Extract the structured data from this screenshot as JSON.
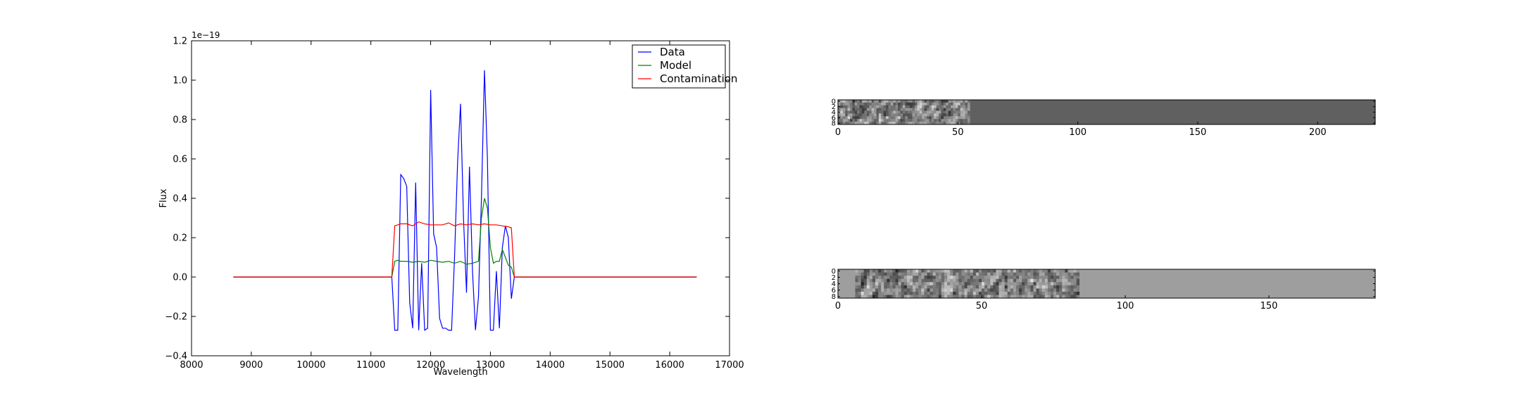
{
  "chart_data": [
    {
      "type": "line",
      "title": "",
      "xlabel": "Wavelength",
      "ylabel": "Flux",
      "y_offset_label": "1e−19",
      "xlim": [
        8000,
        17000
      ],
      "ylim": [
        -0.4,
        1.2
      ],
      "y_scale_exponent": -19,
      "x_ticks": [
        "8000",
        "9000",
        "10000",
        "11000",
        "12000",
        "13000",
        "14000",
        "15000",
        "16000",
        "17000"
      ],
      "y_ticks": [
        "−0.4",
        "−0.2",
        "0.0",
        "0.2",
        "0.4",
        "0.6",
        "0.8",
        "1.0",
        "1.2"
      ],
      "grid": false,
      "legend_position": "top-right",
      "series": [
        {
          "name": "Data",
          "color": "#0000ff",
          "points": [
            [
              8700,
              0.0
            ],
            [
              11350,
              0.0
            ],
            [
              11400,
              -0.27
            ],
            [
              11450,
              -0.27
            ],
            [
              11500,
              0.52
            ],
            [
              11550,
              0.5
            ],
            [
              11600,
              0.46
            ],
            [
              11650,
              -0.13
            ],
            [
              11700,
              -0.26
            ],
            [
              11750,
              0.48
            ],
            [
              11800,
              -0.27
            ],
            [
              11850,
              0.07
            ],
            [
              11900,
              -0.27
            ],
            [
              11950,
              -0.26
            ],
            [
              12000,
              0.95
            ],
            [
              12050,
              0.22
            ],
            [
              12100,
              0.15
            ],
            [
              12150,
              -0.21
            ],
            [
              12200,
              -0.26
            ],
            [
              12250,
              -0.26
            ],
            [
              12300,
              -0.27
            ],
            [
              12350,
              -0.27
            ],
            [
              12400,
              0.1
            ],
            [
              12450,
              0.58
            ],
            [
              12500,
              0.88
            ],
            [
              12550,
              0.3
            ],
            [
              12600,
              -0.08
            ],
            [
              12650,
              0.56
            ],
            [
              12700,
              0.03
            ],
            [
              12750,
              -0.27
            ],
            [
              12800,
              -0.1
            ],
            [
              12850,
              0.4
            ],
            [
              12900,
              1.05
            ],
            [
              12950,
              0.6
            ],
            [
              13000,
              -0.27
            ],
            [
              13050,
              -0.27
            ],
            [
              13100,
              0.03
            ],
            [
              13150,
              -0.26
            ],
            [
              13200,
              0.15
            ],
            [
              13250,
              0.26
            ],
            [
              13300,
              0.2
            ],
            [
              13350,
              -0.11
            ],
            [
              13400,
              0.0
            ],
            [
              16450,
              0.0
            ]
          ]
        },
        {
          "name": "Model",
          "color": "#008000",
          "points": [
            [
              8700,
              0.0
            ],
            [
              11350,
              0.0
            ],
            [
              11400,
              0.08
            ],
            [
              11450,
              0.085
            ],
            [
              11500,
              0.08
            ],
            [
              11600,
              0.08
            ],
            [
              11700,
              0.075
            ],
            [
              11800,
              0.08
            ],
            [
              11900,
              0.075
            ],
            [
              12000,
              0.085
            ],
            [
              12100,
              0.08
            ],
            [
              12200,
              0.075
            ],
            [
              12300,
              0.08
            ],
            [
              12400,
              0.07
            ],
            [
              12500,
              0.08
            ],
            [
              12600,
              0.065
            ],
            [
              12700,
              0.07
            ],
            [
              12800,
              0.08
            ],
            [
              12850,
              0.3
            ],
            [
              12900,
              0.4
            ],
            [
              12950,
              0.35
            ],
            [
              13000,
              0.15
            ],
            [
              13050,
              0.07
            ],
            [
              13100,
              0.08
            ],
            [
              13150,
              0.08
            ],
            [
              13200,
              0.14
            ],
            [
              13250,
              0.1
            ],
            [
              13300,
              0.06
            ],
            [
              13350,
              0.05
            ],
            [
              13400,
              0.0
            ],
            [
              16450,
              0.0
            ]
          ]
        },
        {
          "name": "Contamination",
          "color": "#ff0000",
          "points": [
            [
              8700,
              0.0
            ],
            [
              11350,
              0.0
            ],
            [
              11400,
              0.26
            ],
            [
              11450,
              0.265
            ],
            [
              11500,
              0.27
            ],
            [
              11600,
              0.27
            ],
            [
              11700,
              0.26
            ],
            [
              11800,
              0.28
            ],
            [
              11900,
              0.27
            ],
            [
              12000,
              0.265
            ],
            [
              12100,
              0.265
            ],
            [
              12200,
              0.265
            ],
            [
              12300,
              0.275
            ],
            [
              12400,
              0.26
            ],
            [
              12500,
              0.27
            ],
            [
              12600,
              0.265
            ],
            [
              12700,
              0.27
            ],
            [
              12800,
              0.265
            ],
            [
              12900,
              0.27
            ],
            [
              13000,
              0.265
            ],
            [
              13100,
              0.265
            ],
            [
              13200,
              0.26
            ],
            [
              13300,
              0.255
            ],
            [
              13350,
              0.25
            ],
            [
              13400,
              0.0
            ],
            [
              16450,
              0.0
            ]
          ]
        }
      ]
    },
    {
      "type": "heatmap",
      "title": "",
      "xlim": [
        0,
        224
      ],
      "ylim": [
        0,
        9
      ],
      "x_ticks": [
        "0",
        "50",
        "100",
        "150",
        "200"
      ],
      "y_ticks": [
        "0",
        "2",
        "4",
        "6",
        "8"
      ],
      "textured_columns": [
        0,
        55
      ],
      "colormap": "gray",
      "fill_color": "#606060"
    },
    {
      "type": "heatmap",
      "title": "",
      "xlim": [
        0,
        187
      ],
      "ylim": [
        0,
        9
      ],
      "x_ticks": [
        "0",
        "50",
        "100",
        "150"
      ],
      "y_ticks": [
        "0",
        "2",
        "4",
        "6",
        "8"
      ],
      "textured_columns": [
        6,
        84
      ],
      "colormap": "gray",
      "fill_color": "#9e9e9e"
    }
  ]
}
